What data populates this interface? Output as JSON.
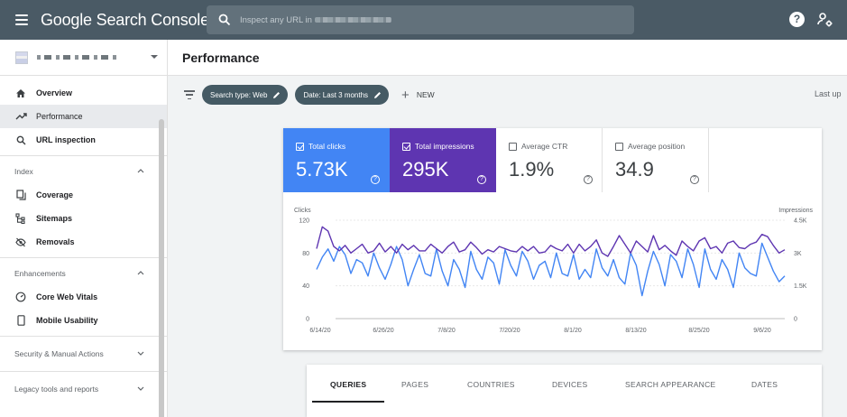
{
  "app": {
    "title": "Google Search Console"
  },
  "search": {
    "placeholder": "Inspect any URL in"
  },
  "property": {},
  "sidebar": {
    "top_items": [
      {
        "label": "Overview",
        "icon": "home-icon"
      },
      {
        "label": "Performance",
        "icon": "trending-up-icon"
      },
      {
        "label": "URL inspection",
        "icon": "search-icon"
      }
    ],
    "sections": [
      {
        "label": "Index",
        "items": [
          {
            "label": "Coverage",
            "icon": "coverage-icon"
          },
          {
            "label": "Sitemaps",
            "icon": "sitemap-icon"
          },
          {
            "label": "Removals",
            "icon": "removals-icon"
          }
        ]
      },
      {
        "label": "Enhancements",
        "items": [
          {
            "label": "Core Web Vitals",
            "icon": "gauge-icon"
          },
          {
            "label": "Mobile Usability",
            "icon": "phone-icon"
          }
        ]
      }
    ],
    "collapsed_sections": [
      "Security & Manual Actions",
      "Legacy tools and reports"
    ]
  },
  "page": {
    "title": "Performance"
  },
  "filters": {
    "chips": [
      "Search type: Web",
      "Date: Last 3 months"
    ],
    "new_label": "NEW",
    "last_updated": "Last up"
  },
  "metrics": [
    {
      "label": "Total clicks",
      "value": "5.73K",
      "checked": true,
      "color": "#4285f4"
    },
    {
      "label": "Total impressions",
      "value": "295K",
      "checked": true,
      "color": "#5e35b1"
    },
    {
      "label": "Average CTR",
      "value": "1.9%",
      "checked": false
    },
    {
      "label": "Average position",
      "value": "34.9",
      "checked": false
    }
  ],
  "chart_data": {
    "type": "line",
    "x_tick_labels": [
      "6/14/20",
      "6/26/20",
      "7/8/20",
      "7/20/20",
      "8/1/20",
      "8/13/20",
      "8/25/20",
      "9/6/20"
    ],
    "left_axis": {
      "label": "Clicks",
      "ticks": [
        0,
        40,
        80,
        120
      ],
      "range": [
        0,
        120
      ]
    },
    "right_axis": {
      "label": "Impressions",
      "ticks": [
        "0",
        "1.5K",
        "3K",
        "4.5K"
      ],
      "range": [
        0,
        4500
      ]
    },
    "series": [
      {
        "axis": "left",
        "color": "#4285f4",
        "values": [
          60,
          75,
          85,
          70,
          88,
          78,
          55,
          72,
          68,
          52,
          80,
          62,
          48,
          66,
          88,
          72,
          40,
          60,
          78,
          55,
          52,
          85,
          58,
          40,
          72,
          60,
          38,
          82,
          60,
          48,
          75,
          68,
          42,
          84,
          65,
          52,
          82,
          70,
          48,
          65,
          70,
          50,
          80,
          55,
          52,
          78,
          48,
          60,
          50,
          85,
          62,
          52,
          72,
          50,
          42,
          80,
          65,
          28,
          58,
          82,
          66,
          40,
          78,
          70,
          50,
          85,
          66,
          38,
          85,
          60,
          48,
          72,
          60,
          38,
          80,
          62,
          55,
          52,
          92,
          75,
          58,
          45,
          52
        ]
      },
      {
        "axis": "right",
        "color": "#5e35b1",
        "values": [
          3200,
          4200,
          4000,
          3300,
          3100,
          3350,
          3000,
          3200,
          3400,
          3000,
          3100,
          3450,
          3050,
          3300,
          3000,
          3400,
          3150,
          3350,
          3100,
          3100,
          3400,
          3200,
          3000,
          3300,
          3500,
          3050,
          3150,
          3500,
          3250,
          2950,
          3150,
          3050,
          3300,
          3200,
          3100,
          3050,
          3300,
          3100,
          3300,
          3000,
          3050,
          3350,
          3200,
          3100,
          3400,
          3000,
          3400,
          3100,
          3300,
          3600,
          3000,
          2850,
          3300,
          3800,
          3400,
          3000,
          3550,
          3300,
          3050,
          3800,
          3150,
          3350,
          3100,
          2900,
          3550,
          3300,
          3100,
          3550,
          3700,
          3200,
          3300,
          3000,
          3450,
          3550,
          3250,
          3200,
          3400,
          3500,
          3850,
          3750,
          3350,
          3000,
          3150
        ]
      }
    ]
  },
  "tabs": [
    "QUERIES",
    "PAGES",
    "COUNTRIES",
    "DEVICES",
    "SEARCH APPEARANCE",
    "DATES"
  ]
}
